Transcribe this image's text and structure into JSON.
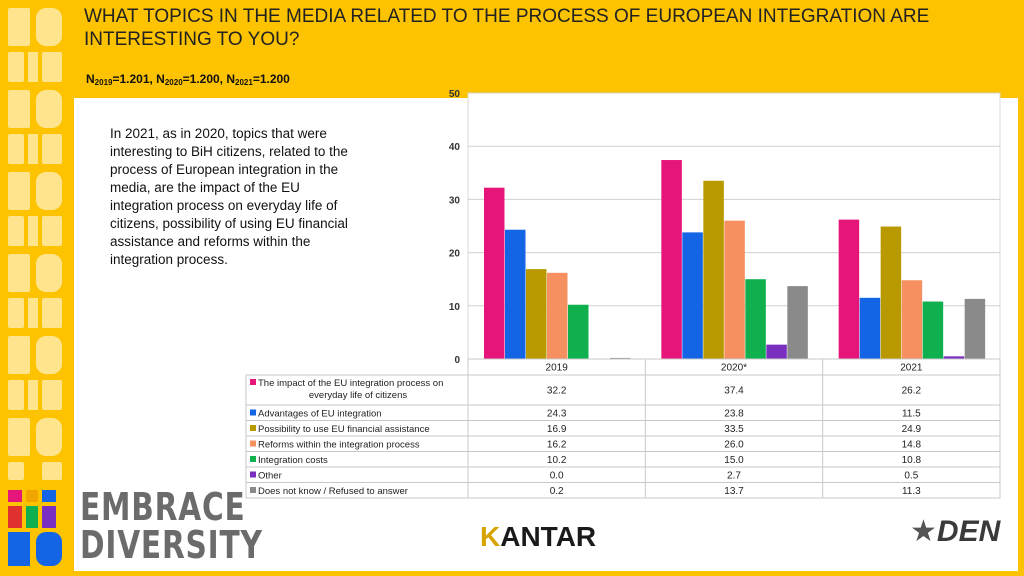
{
  "header": {
    "title": "WHAT TOPICS IN THE MEDIA RELATED TO THE PROCESS OF EUROPEAN INTEGRATION ARE INTERESTING TO YOU?",
    "n_label": "N",
    "n2019_sub": "2019",
    "n2019_val": "=1.201, N",
    "n2020_sub": "2020",
    "n2020_val": "=1.200, N",
    "n2021_sub": "2021",
    "n2021_val": "=1.200"
  },
  "note": "In 2021, as in 2020, topics that were interesting to BiH citizens, related to the process of European integration in the media, are the impact  of the EU integration process on everyday life of citizens, possibility of using EU financial assistance and reforms within the integration process.",
  "brand": {
    "embrace_line1": "EMBRACE",
    "embrace_line2": "DIVERSITY",
    "kantar_k": "K",
    "kantar_rest": "ANTAR",
    "den": "DEN"
  },
  "chart_data": {
    "type": "bar",
    "categories": [
      "2019",
      "2020*",
      "2021"
    ],
    "ylim": [
      0,
      50
    ],
    "yticks": [
      "0",
      "10",
      "20",
      "30",
      "40",
      "50"
    ],
    "series": [
      {
        "name": "The impact of the EU integration process on everyday life of citizens",
        "color": "#E5157A",
        "values": [
          32.2,
          37.4,
          26.2
        ],
        "labels": [
          "32.2",
          "37.4",
          "26.2"
        ]
      },
      {
        "name": "Advantages of EU integration",
        "color": "#1464E6",
        "values": [
          24.3,
          23.8,
          11.5
        ],
        "labels": [
          "24.3",
          "23.8",
          "11.5"
        ]
      },
      {
        "name": "Possibility to use EU financial assistance",
        "color": "#B89A00",
        "values": [
          16.9,
          33.5,
          24.9
        ],
        "labels": [
          "16.9",
          "33.5",
          "24.9"
        ]
      },
      {
        "name": "Reforms within the integration process",
        "color": "#F79060",
        "values": [
          16.2,
          26.0,
          14.8
        ],
        "labels": [
          "16.2",
          "26.0",
          "14.8"
        ]
      },
      {
        "name": "Integration costs",
        "color": "#11B04F",
        "values": [
          10.2,
          15.0,
          10.8
        ],
        "labels": [
          "10.2",
          "15.0",
          "10.8"
        ]
      },
      {
        "name": "Other",
        "color": "#7A2FC0",
        "values": [
          0.0,
          2.7,
          0.5
        ],
        "labels": [
          "0.0",
          "2.7",
          "0.5"
        ]
      },
      {
        "name": "Does not know / Refused to answer",
        "color": "#8A8A8A",
        "values": [
          0.2,
          13.7,
          11.3
        ],
        "labels": [
          "0.2",
          "13.7",
          "11.3"
        ]
      }
    ]
  }
}
